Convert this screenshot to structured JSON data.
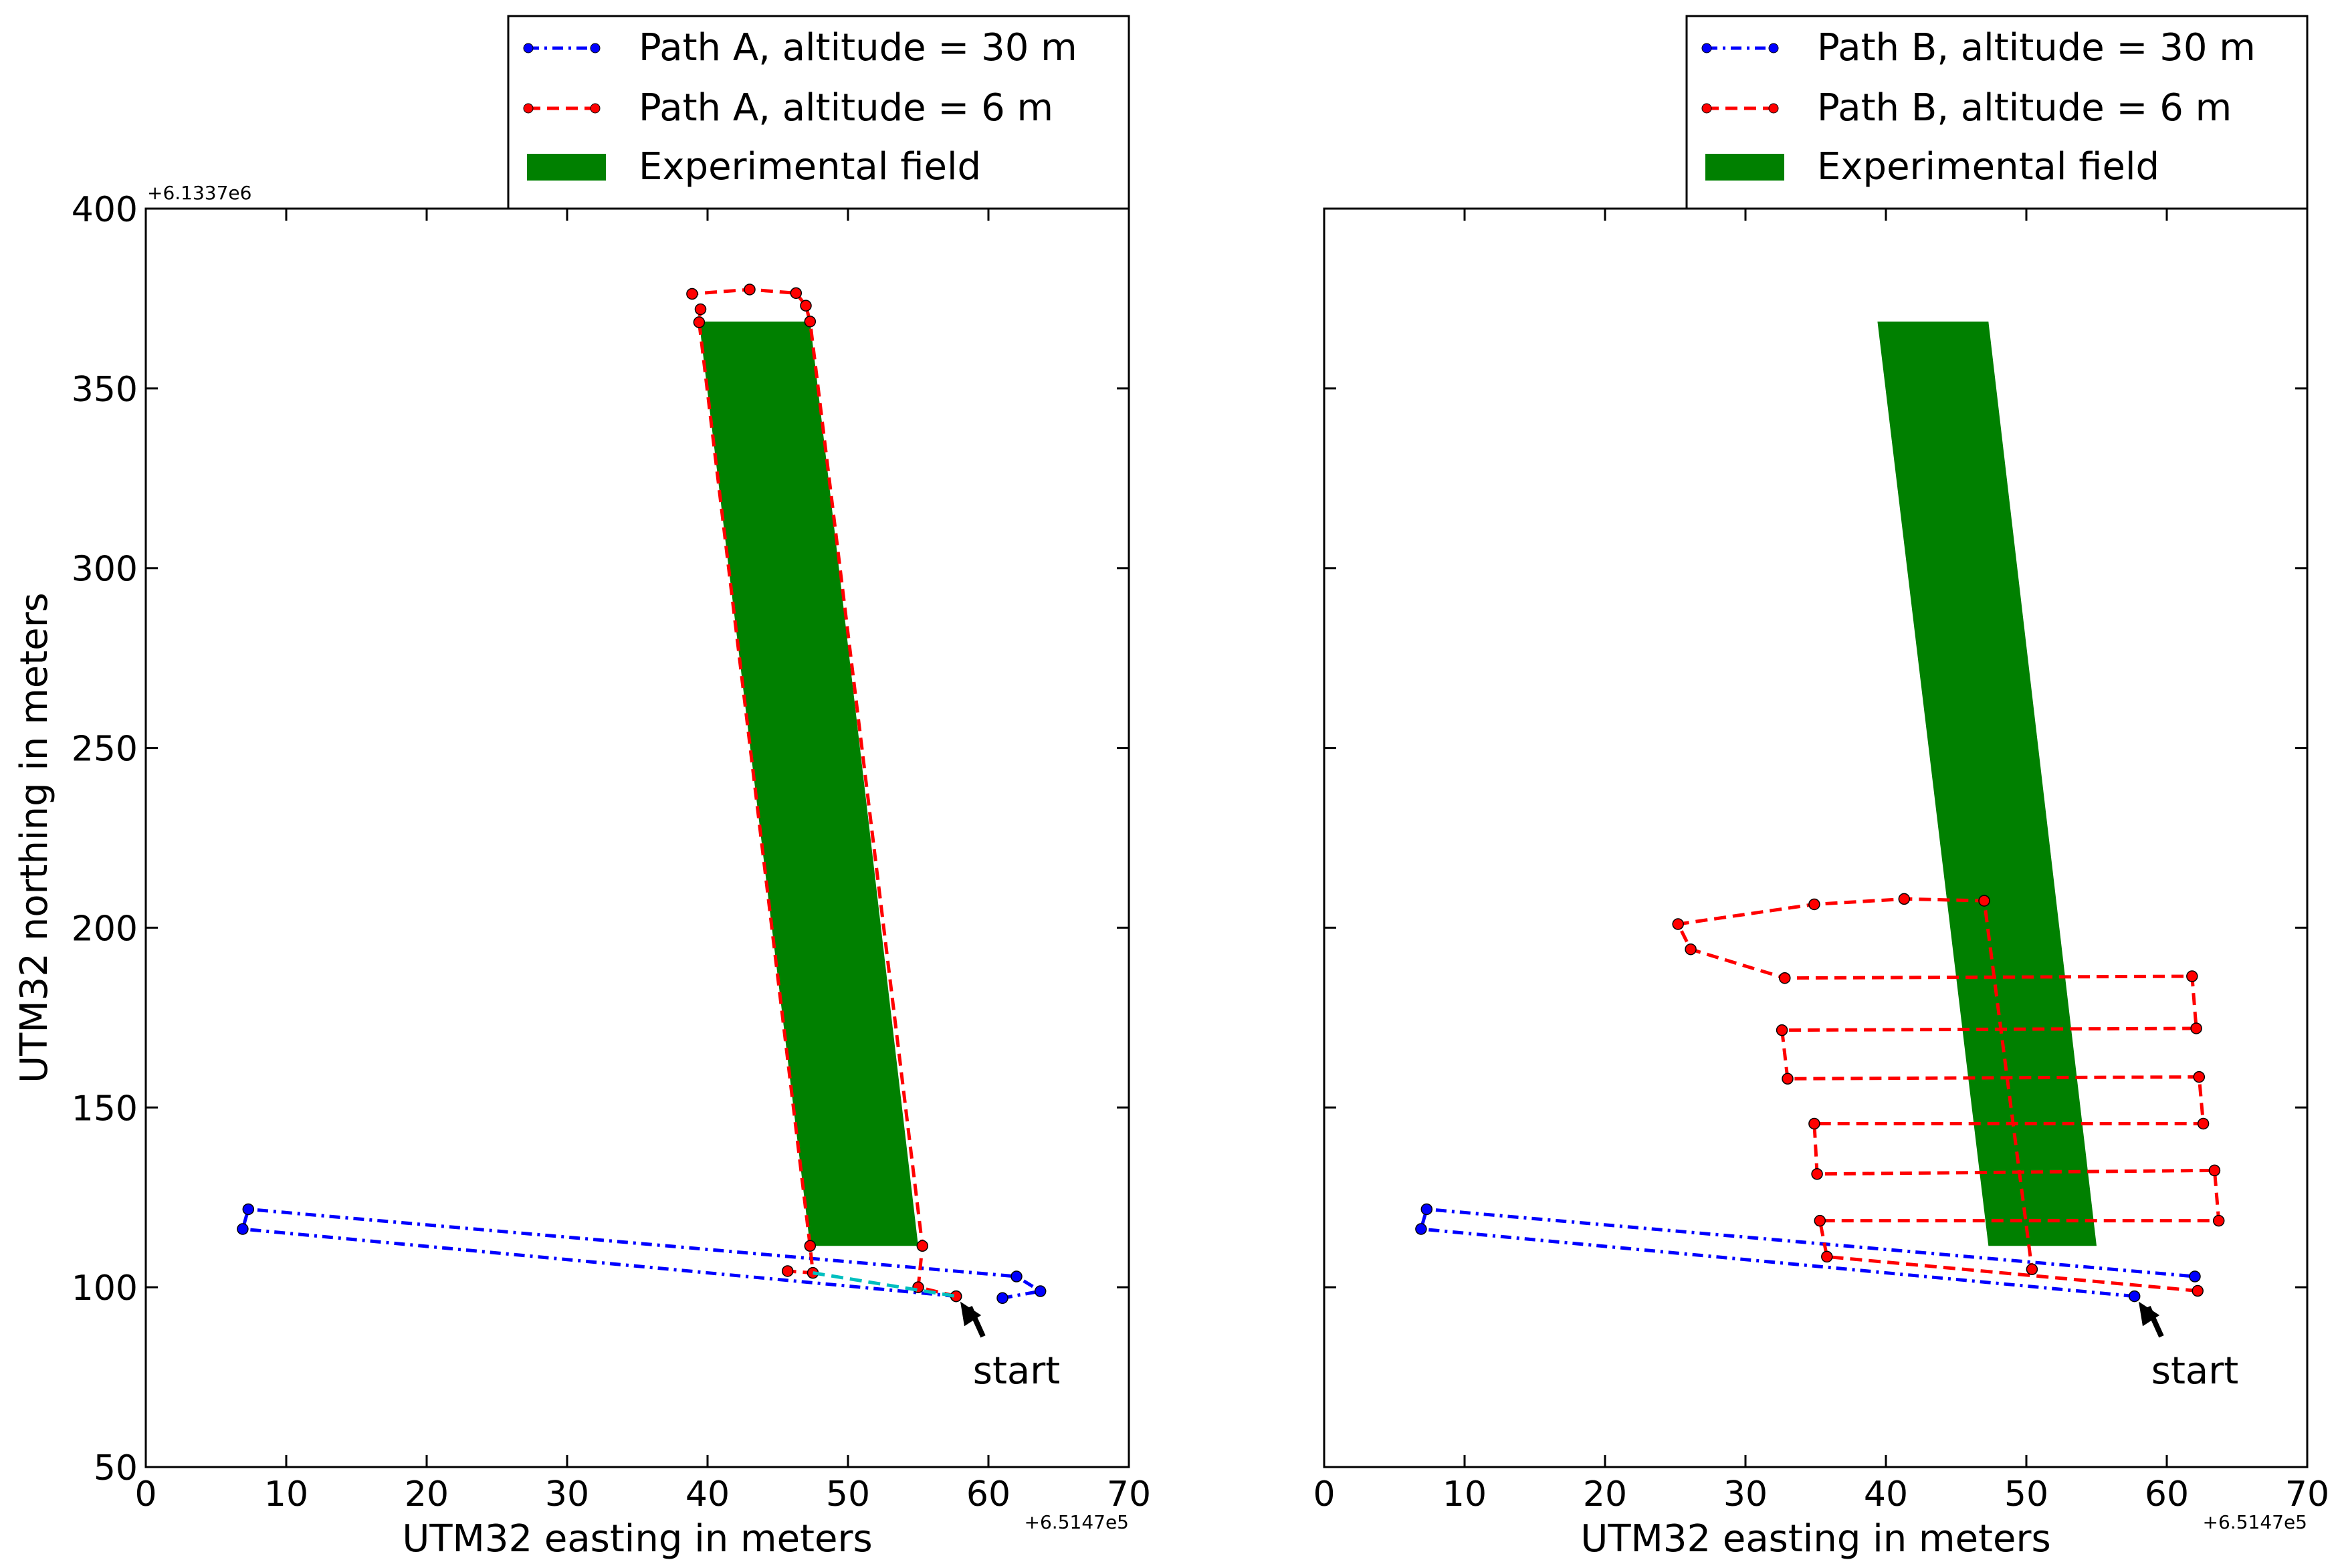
{
  "chart_data": [
    {
      "type": "line",
      "xlabel": "UTM32 easting in meters",
      "ylabel": "UTM32 northing in meters",
      "x_offset_label": "+6.5147e5",
      "y_offset_label": "+6.1337e6",
      "xlim": [
        0,
        70
      ],
      "ylim": [
        50,
        400
      ],
      "xticks": [
        0,
        10,
        20,
        30,
        40,
        50,
        60,
        70
      ],
      "yticks": [
        50,
        100,
        150,
        200,
        250,
        300,
        350,
        400
      ],
      "legend": "top-right",
      "legend_entries": [
        "Path A, altitude = 30 m",
        "Path A, altitude = 6 m",
        "Experimental field"
      ],
      "series": [
        {
          "name": "Path A, altitude = 30 m",
          "color": "#0000ff",
          "style": "dashdot",
          "points": [
            [
              57.7,
              97.5
            ],
            [
              6.9,
              116.2
            ],
            [
              7.3,
              121.7
            ],
            [
              62.0,
              103.0
            ],
            [
              63.7,
              98.9
            ],
            [
              61.0,
              97.0
            ]
          ]
        },
        {
          "name": "Path A, altitude = 6 m",
          "color": "#ff0000",
          "style": "dashed",
          "points": [
            [
              57.7,
              97.5
            ],
            [
              55.0,
              100.0
            ],
            [
              55.3,
              111.5
            ],
            [
              47.3,
              368.6
            ],
            [
              47.0,
              373.0
            ],
            [
              46.3,
              376.5
            ],
            [
              43.0,
              377.5
            ],
            [
              38.9,
              376.3
            ],
            [
              39.5,
              372.0
            ],
            [
              39.4,
              368.4
            ],
            [
              47.3,
              111.5
            ],
            [
              47.5,
              104.0
            ],
            [
              45.7,
              104.5
            ]
          ]
        },
        {
          "name": "",
          "color": "#00bfbf",
          "style": "dashed",
          "points": [
            [
              47.5,
              104.0
            ],
            [
              57.7,
              97.5
            ]
          ]
        },
        {
          "name": "Experimental field",
          "color": "#008000",
          "style": "polygon",
          "points": [
            [
              39.4,
              368.6
            ],
            [
              47.3,
              368.6
            ],
            [
              55.0,
              111.5
            ],
            [
              47.3,
              111.5
            ]
          ]
        }
      ],
      "annotation": {
        "text": "start",
        "xy": [
          58.0,
          96.0
        ],
        "text_xy": [
          62.0,
          77.0
        ]
      }
    },
    {
      "type": "line",
      "xlabel": "UTM32 easting in meters",
      "x_offset_label": "+6.5147e5",
      "xlim": [
        0,
        70
      ],
      "ylim": [
        50,
        400
      ],
      "xticks": [
        0,
        10,
        20,
        30,
        40,
        50,
        60,
        70
      ],
      "legend": "top-right",
      "legend_entries": [
        "Path B, altitude = 30 m",
        "Path B, altitude = 6 m",
        "Experimental field"
      ],
      "series": [
        {
          "name": "Path B, altitude = 30 m",
          "color": "#0000ff",
          "style": "dashdot",
          "points": [
            [
              57.7,
              97.5
            ],
            [
              6.9,
              116.2
            ],
            [
              7.3,
              121.7
            ],
            [
              62.0,
              103.0
            ]
          ]
        },
        {
          "name": "Path B, altitude = 6 m",
          "color": "#ff0000",
          "style": "dashed",
          "points": [
            [
              62.2,
              99.0
            ],
            [
              35.8,
              108.5
            ],
            [
              35.3,
              118.5
            ],
            [
              63.7,
              118.5
            ],
            [
              63.4,
              132.5
            ],
            [
              35.1,
              131.5
            ],
            [
              34.9,
              145.5
            ],
            [
              62.6,
              145.5
            ],
            [
              62.3,
              158.5
            ],
            [
              33.0,
              158.0
            ],
            [
              32.6,
              171.5
            ],
            [
              62.1,
              172.0
            ],
            [
              61.8,
              186.5
            ],
            [
              32.8,
              186.0
            ],
            [
              26.1,
              194.0
            ],
            [
              25.2,
              201.0
            ],
            [
              34.9,
              206.5
            ],
            [
              41.3,
              208.0
            ],
            [
              47.0,
              207.5
            ],
            [
              50.4,
              105.0
            ]
          ]
        },
        {
          "name": "Experimental field",
          "color": "#008000",
          "style": "polygon",
          "points": [
            [
              39.4,
              368.6
            ],
            [
              47.3,
              368.6
            ],
            [
              55.0,
              111.5
            ],
            [
              47.3,
              111.5
            ]
          ]
        }
      ],
      "annotation": {
        "text": "start",
        "xy": [
          58.0,
          96.0
        ],
        "text_xy": [
          62.0,
          77.0
        ]
      }
    }
  ]
}
